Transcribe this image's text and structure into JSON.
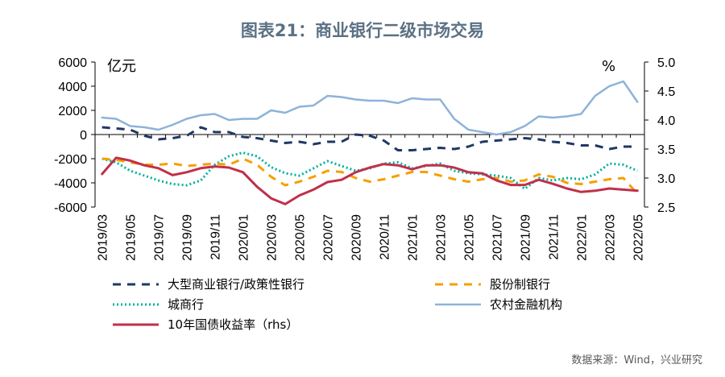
{
  "title": "图表21：商业银行二级市场交易",
  "source": "数据来源：Wind，兴业研究",
  "chart_data": {
    "type": "line",
    "title": "图表21：商业银行二级市场交易",
    "left_unit": "亿元",
    "right_unit": "%",
    "ylim_left": [
      -6000,
      6000
    ],
    "yticks_left": [
      "6000",
      "4000",
      "2000",
      "0",
      "-2000",
      "-4000",
      "-6000"
    ],
    "ylim_right": [
      2.5,
      5.0
    ],
    "yticks_right": [
      "5.0",
      "4.5",
      "4.0",
      "3.5",
      "3.0",
      "2.5"
    ],
    "x": [
      "2019/03",
      "2019/04",
      "2019/05",
      "2019/06",
      "2019/07",
      "2019/08",
      "2019/09",
      "2019/10",
      "2019/11",
      "2019/12",
      "2020/01",
      "2020/02",
      "2020/03",
      "2020/04",
      "2020/05",
      "2020/06",
      "2020/07",
      "2020/08",
      "2020/09",
      "2020/10",
      "2020/11",
      "2020/12",
      "2021/01",
      "2021/02",
      "2021/03",
      "2021/04",
      "2021/05",
      "2021/06",
      "2021/07",
      "2021/08",
      "2021/09",
      "2021/10",
      "2021/11",
      "2021/12",
      "2022/01",
      "2022/02",
      "2022/03",
      "2022/04",
      "2022/05"
    ],
    "xtick_labels": [
      "2019/03",
      "2019/05",
      "2019/07",
      "2019/09",
      "2019/11",
      "2020/01",
      "2020/03",
      "2020/05",
      "2020/07",
      "2020/09",
      "2020/11",
      "2021/01",
      "2021/03",
      "2021/05",
      "2021/07",
      "2021/09",
      "2021/11",
      "2022/01",
      "2022/03",
      "2022/05"
    ],
    "legend_position": "bottom",
    "grid": false,
    "series": [
      {
        "name": "大型商业银行/政策性银行",
        "axis": "left",
        "color": "#1f3864",
        "style": "dash",
        "values": [
          600,
          500,
          400,
          -100,
          -400,
          -300,
          -100,
          600,
          200,
          200,
          -200,
          -300,
          -500,
          -700,
          -600,
          -800,
          -600,
          -600,
          0,
          -100,
          -500,
          -1300,
          -1300,
          -1200,
          -1100,
          -1200,
          -1000,
          -600,
          -500,
          -400,
          -300,
          -400,
          -600,
          -700,
          -900,
          -900,
          -1200,
          -1000,
          -1000
        ]
      },
      {
        "name": "股份制银行",
        "axis": "left",
        "color": "#f5a000",
        "style": "dash",
        "values": [
          -2000,
          -2100,
          -2300,
          -2500,
          -2500,
          -2400,
          -2600,
          -2500,
          -2400,
          -2500,
          -2000,
          -2500,
          -3500,
          -4200,
          -3900,
          -3500,
          -3000,
          -3100,
          -3600,
          -3900,
          -3700,
          -3400,
          -3100,
          -3100,
          -3400,
          -3700,
          -3900,
          -3700,
          -3600,
          -3900,
          -3800,
          -3300,
          -3500,
          -4000,
          -4100,
          -3900,
          -3700,
          -3600,
          -4900
        ]
      },
      {
        "name": "城商行",
        "axis": "left",
        "color": "#00b0a0",
        "style": "dot",
        "values": [
          -2000,
          -2300,
          -3000,
          -3400,
          -3800,
          -4100,
          -4200,
          -3800,
          -2500,
          -1800,
          -1500,
          -1800,
          -2700,
          -3200,
          -3400,
          -2800,
          -2200,
          -2600,
          -3000,
          -2800,
          -2400,
          -2300,
          -2800,
          -2600,
          -2400,
          -3000,
          -3200,
          -3300,
          -3400,
          -3600,
          -4500,
          -3600,
          -3800,
          -3600,
          -3700,
          -3300,
          -2400,
          -2500,
          -3000
        ]
      },
      {
        "name": "农村金融机构",
        "axis": "left",
        "color": "#8db3d9",
        "style": "solid",
        "values": [
          1400,
          1300,
          700,
          600,
          400,
          800,
          1300,
          1600,
          1700,
          1200,
          1300,
          1300,
          2000,
          1800,
          2300,
          2400,
          3200,
          3100,
          2900,
          2800,
          2800,
          2600,
          3000,
          2900,
          2900,
          1300,
          400,
          200,
          0,
          200,
          700,
          1500,
          1400,
          1500,
          1700,
          3200,
          4000,
          4400,
          2700
        ]
      },
      {
        "name": "10年国债收益率（rhs）",
        "axis": "right",
        "color": "#c0304a",
        "style": "solid",
        "values": [
          3.07,
          3.35,
          3.3,
          3.22,
          3.17,
          3.05,
          3.1,
          3.17,
          3.2,
          3.18,
          3.1,
          2.85,
          2.65,
          2.55,
          2.7,
          2.8,
          2.93,
          2.97,
          3.1,
          3.18,
          3.24,
          3.22,
          3.15,
          3.22,
          3.22,
          3.18,
          3.1,
          3.08,
          2.96,
          2.88,
          2.88,
          2.97,
          2.9,
          2.82,
          2.76,
          2.78,
          2.82,
          2.8,
          2.78
        ]
      }
    ]
  }
}
